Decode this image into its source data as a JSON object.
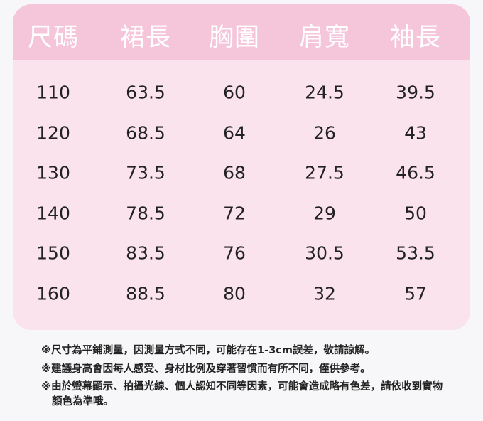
{
  "table": {
    "headers": [
      "尺碼",
      "裙長",
      "胸圍",
      "肩寬",
      "袖長"
    ],
    "rows": [
      [
        "110",
        "63.5",
        "60",
        "24.5",
        "39.5"
      ],
      [
        "120",
        "68.5",
        "64",
        "26",
        "43"
      ],
      [
        "130",
        "73.5",
        "68",
        "27.5",
        "46.5"
      ],
      [
        "140",
        "78.5",
        "72",
        "29",
        "50"
      ],
      [
        "150",
        "83.5",
        "76",
        "30.5",
        "53.5"
      ],
      [
        "160",
        "88.5",
        "80",
        "32",
        "57"
      ]
    ]
  },
  "notes": [
    "※尺寸為平鋪測量，因測量方式不同，可能存在1-3cm誤差，敬請諒解。",
    "※建議身高會因每人感受、身材比例及穿著習慣而有所不同，僅供參考。",
    "※由於螢幕顯示、拍攝光線、個人認知不同等因素，可能會造成略有色差，請依收到實物顏色為準哦。"
  ],
  "colors": {
    "header": "#f5c6da",
    "body": "#fbe3ee",
    "header_text": "#ffffff"
  }
}
